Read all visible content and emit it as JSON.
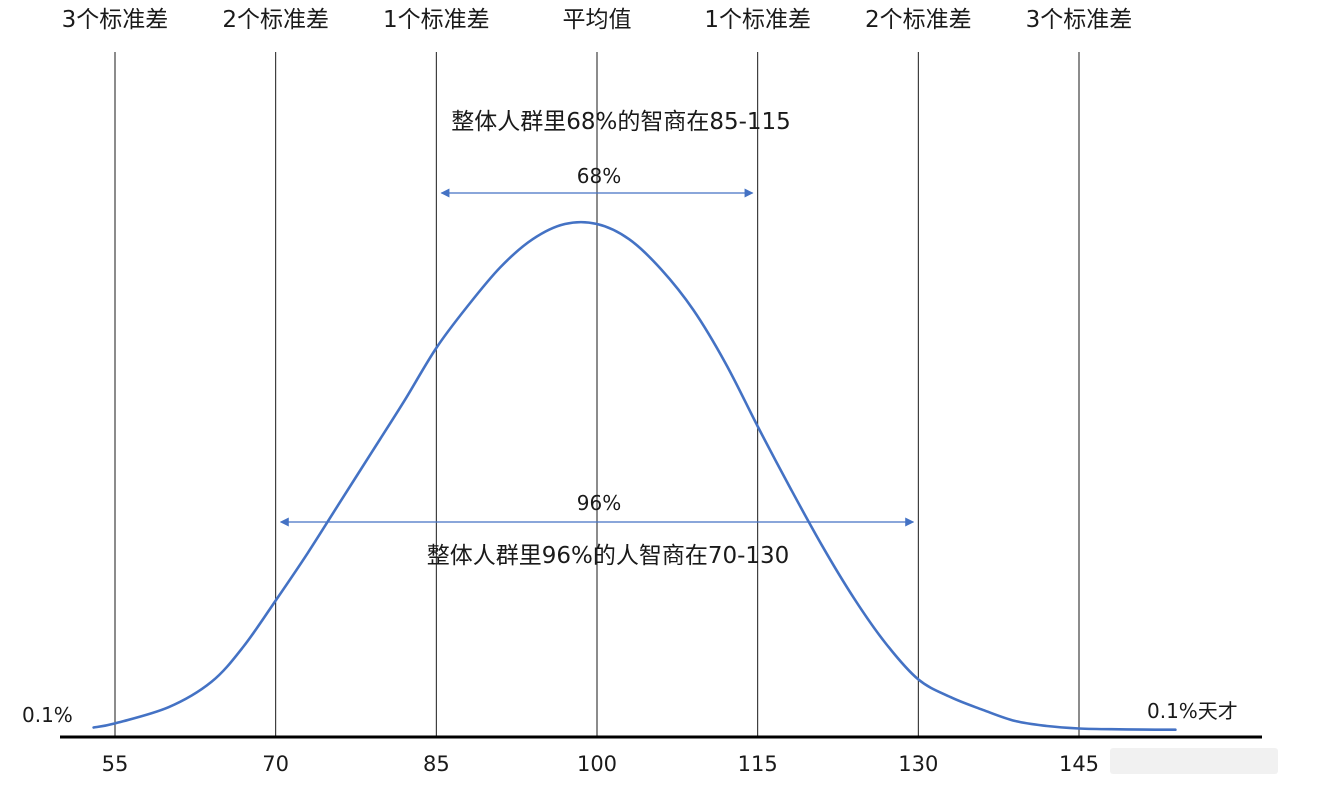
{
  "chart_data": {
    "type": "line",
    "title": "",
    "xlabel": "",
    "ylabel": "",
    "x_ticks": [
      55,
      70,
      85,
      100,
      115,
      130,
      145
    ],
    "xlim": [
      52,
      158
    ],
    "ylim": [
      0,
      1.06
    ],
    "grid": false,
    "legend": "none",
    "series": [
      {
        "name": "",
        "color": "#4472c4",
        "x": [
          53,
          55,
          60,
          64,
          67,
          70,
          73,
          76,
          79,
          82,
          85,
          88,
          91,
          94,
          97,
          100,
          103,
          106,
          109,
          112,
          115,
          118,
          121,
          124,
          127,
          130,
          133,
          136,
          139,
          142,
          145,
          148,
          151,
          154
        ],
        "y": [
          0.005,
          0.013,
          0.045,
          0.095,
          0.165,
          0.256,
          0.35,
          0.45,
          0.55,
          0.65,
          0.755,
          0.84,
          0.915,
          0.97,
          1.0,
          1.0,
          0.97,
          0.91,
          0.83,
          0.725,
          0.6,
          0.48,
          0.365,
          0.26,
          0.17,
          0.1,
          0.065,
          0.04,
          0.018,
          0.008,
          0.003,
          0.0015,
          0.0008,
          0.0005
        ]
      }
    ],
    "vlines": [
      {
        "x": 55,
        "label": "3个标准差"
      },
      {
        "x": 70,
        "label": "2个标准差"
      },
      {
        "x": 85,
        "label": "1个标准差"
      },
      {
        "x": 100,
        "label": "平均值"
      },
      {
        "x": 115,
        "label": "1个标准差"
      },
      {
        "x": 130,
        "label": "2个标准差"
      },
      {
        "x": 145,
        "label": "3个标准差"
      }
    ],
    "ranges": [
      {
        "from": 85,
        "to": 115,
        "label": "68%",
        "note": "整体人群里68%的智商在85-115",
        "arrow_color": "#4472c4"
      },
      {
        "from": 70,
        "to": 130,
        "label": "96%",
        "note": "整体人群里96%的人智商在70-130",
        "arrow_color": "#4472c4"
      }
    ],
    "edge_labels": {
      "left": "0.1%",
      "right": "0.1%天才"
    }
  }
}
